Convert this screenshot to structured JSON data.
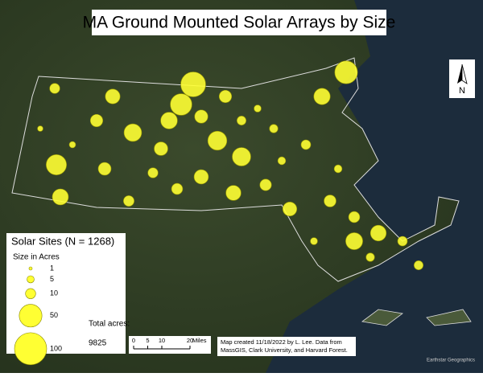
{
  "title": "MA Ground Mounted Solar Arrays by Size",
  "legend": {
    "title": "Solar Sites (N = 1268)",
    "subtitle": "Size in Acres",
    "sizes": [
      1,
      5,
      10,
      50,
      100
    ],
    "total_label": "Total acres:",
    "total": 9825
  },
  "scale_bar": {
    "ticks": [
      0,
      5,
      10,
      20
    ],
    "unit": "Miles"
  },
  "credit": [
    "Map created 11/18/2022 by L. Lee. Data from",
    "MassGIS, Clark University, and Harvard Forest."
  ],
  "north": "N",
  "basemap_credit": "Earthstar Geographics",
  "sites": {
    "acres": [
      60,
      25,
      10,
      40,
      30,
      15,
      8,
      20,
      12,
      5,
      35,
      18,
      6,
      45,
      22,
      9,
      14,
      28,
      7,
      50,
      16,
      11,
      4,
      26,
      13,
      3,
      19,
      24,
      8,
      33,
      10,
      6,
      17,
      21,
      5,
      12,
      9,
      15,
      7,
      27
    ]
  }
}
